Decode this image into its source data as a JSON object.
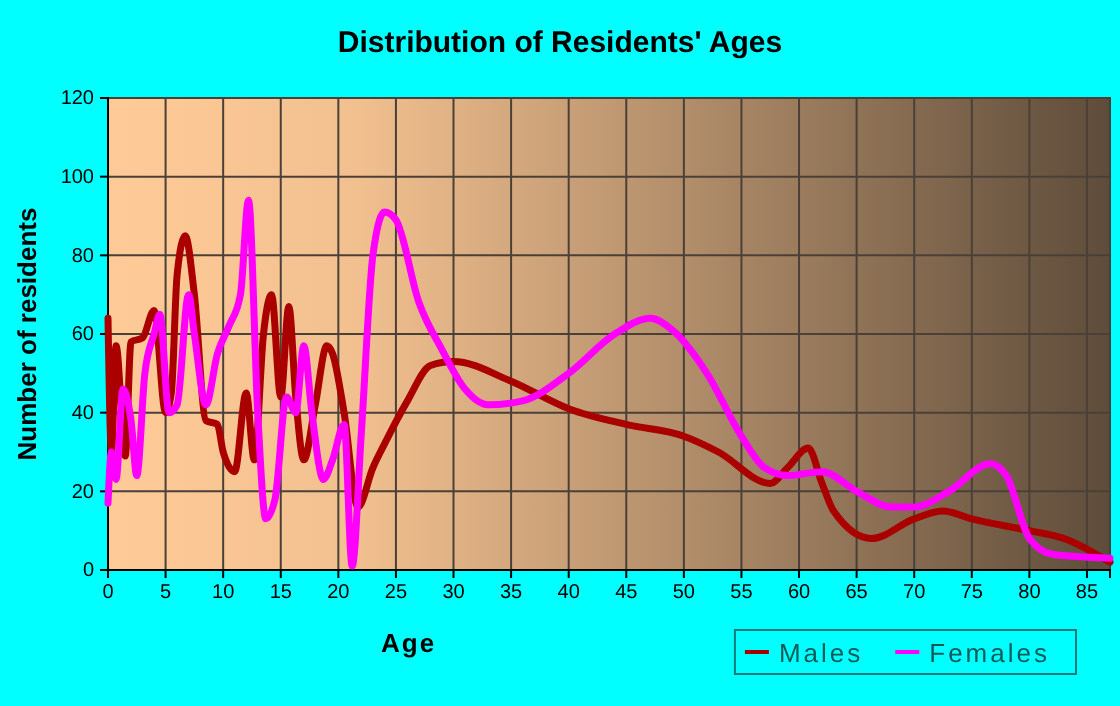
{
  "chart_data": {
    "type": "line",
    "title": "Distribution of Residents' Ages",
    "xlabel": "Age",
    "ylabel": "Number of residents",
    "xlim": [
      0,
      87
    ],
    "xticks": [
      0,
      5,
      10,
      15,
      20,
      25,
      30,
      35,
      40,
      45,
      50,
      55,
      60,
      65,
      70,
      75,
      80,
      85
    ],
    "ylim": [
      0,
      120
    ],
    "yticks": [
      0,
      20,
      40,
      60,
      80,
      100,
      120
    ],
    "grid": true,
    "legend": "bottom right",
    "marker": "none",
    "line_style": "solid",
    "series": [
      {
        "name": "Males",
        "color": "#aa0000",
        "x": [
          0,
          0.3,
          0.7,
          1.5,
          2,
          3,
          4,
          5,
          5.5,
          6,
          6.7,
          7.5,
          8.5,
          9.5,
          10,
          11,
          12,
          12.7,
          13.5,
          14.2,
          15,
          15.7,
          16.3,
          17,
          18,
          19,
          19.5,
          20.5,
          21.7,
          23,
          24,
          26,
          28,
          30,
          35,
          40,
          45,
          50,
          53,
          57.5,
          59,
          60.8,
          62,
          63,
          66.3,
          70,
          72.5,
          75,
          80,
          83,
          87
        ],
        "values": [
          64,
          30,
          57,
          29,
          58,
          59,
          66,
          40,
          45,
          75,
          85,
          70,
          38,
          37,
          30,
          25,
          45,
          28,
          60,
          70,
          44,
          67,
          44,
          28,
          42,
          57,
          55,
          40,
          16,
          26,
          32,
          43,
          52,
          53,
          48,
          41,
          37,
          34,
          30,
          22,
          26,
          31,
          22,
          15,
          8,
          13,
          15,
          13,
          10,
          8,
          2
        ]
      },
      {
        "name": "Females",
        "color": "#ff00ff",
        "x": [
          0,
          0.3,
          0.7,
          1.3,
          2,
          2.5,
          3.2,
          4,
          4.5,
          5.3,
          6,
          7,
          7.5,
          8.5,
          9.5,
          10.5,
          11.5,
          12.2,
          13,
          13.7,
          14.5,
          15.5,
          16.3,
          17,
          17.7,
          18.7,
          19.5,
          20.5,
          21.2,
          22,
          23,
          24,
          25,
          27,
          29,
          31,
          33,
          36,
          40,
          44,
          47.1,
          49,
          52,
          55,
          57,
          59,
          62,
          65,
          68,
          70,
          73,
          76.6,
          78,
          80,
          82,
          87
        ],
        "values": [
          17,
          30,
          23,
          46,
          38,
          24,
          50,
          60,
          65,
          40,
          42,
          70,
          60,
          42,
          55,
          62,
          70,
          94,
          40,
          13,
          18,
          44,
          40,
          57,
          40,
          23,
          28,
          37,
          1,
          35,
          80,
          91,
          89,
          68,
          56,
          46,
          42,
          43,
          50,
          60,
          64,
          61,
          50,
          34,
          26,
          24,
          25,
          20,
          16,
          16,
          20,
          27,
          24,
          8,
          4,
          3
        ]
      }
    ]
  }
}
